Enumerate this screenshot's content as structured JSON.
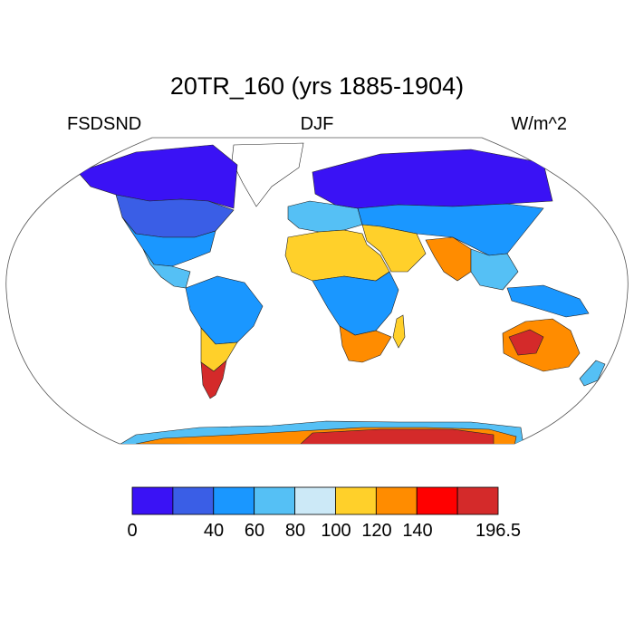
{
  "title": "20TR_160 (yrs 1885-1904)",
  "left_label": "FSDSND",
  "center_label": "DJF",
  "right_label": "W/m^2",
  "colorbar": {
    "colors": [
      "#3a12f5",
      "#3a5ee6",
      "#1a97ff",
      "#55c0f5",
      "#cce9f7",
      "#ffd02a",
      "#ff8c00",
      "#ff0000",
      "#d42a2a"
    ],
    "tick_labels": [
      "0",
      "40",
      "60",
      "80",
      "100",
      "120",
      "140",
      "196.5"
    ]
  }
}
